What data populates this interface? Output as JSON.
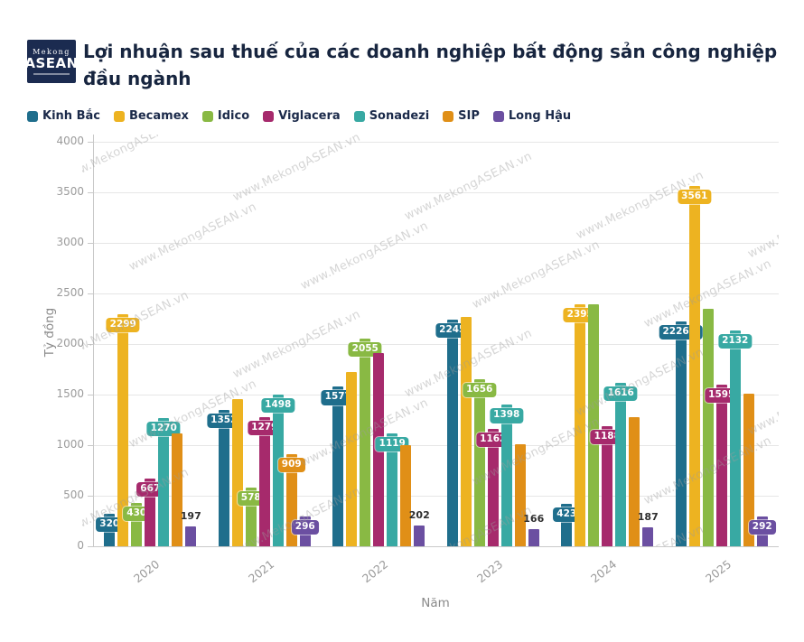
{
  "header": {
    "logo_line1": "Mekong",
    "logo_line2": "ASEAN"
  },
  "watermark": {
    "text": "www.MekongASEAN.vn"
  },
  "chart_data": {
    "type": "bar",
    "title": "Lợi nhuận sau thuế của các doanh nghiệp bất động sản công nghiệp đầu ngành",
    "xlabel": "Năm",
    "ylabel": "Tỷ đồng",
    "ylim": [
      0,
      4000
    ],
    "ytick_step": 500,
    "grid": true,
    "legend_position": "top",
    "categories": [
      "2020",
      "2021",
      "2022",
      "2023",
      "2024",
      "2025"
    ],
    "series": [
      {
        "name": "Kinh Bắc",
        "color": "#1f6e8c",
        "values": [
          320,
          1352,
          1577,
          2245,
          423,
          2226.8
        ],
        "labels": [
          "320",
          "1352",
          "1577",
          "2245",
          "423",
          "2226.8"
        ],
        "label_styles": [
          "badge",
          "badge",
          "badge",
          "badge",
          "badge",
          "badge"
        ]
      },
      {
        "name": "Becamex",
        "color": "#edb321",
        "values": [
          2299,
          1455,
          1720,
          2270,
          2395,
          3561
        ],
        "labels": [
          "2299",
          null,
          null,
          null,
          "2395",
          "3561"
        ],
        "label_styles": [
          "badge",
          null,
          null,
          null,
          "badge",
          "badge"
        ]
      },
      {
        "name": "Idico",
        "color": "#89b944",
        "values": [
          430,
          578,
          2055,
          1656,
          2390,
          2350
        ],
        "labels": [
          "430",
          "578",
          "2055",
          "1656",
          null,
          null
        ],
        "label_styles": [
          "badge",
          "badge",
          "badge",
          "badge",
          null,
          null
        ]
      },
      {
        "name": "Viglacera",
        "color": "#a62a6c",
        "values": [
          667,
          1279,
          1910,
          1162,
          1188,
          1595
        ],
        "labels": [
          "667",
          "1279",
          null,
          "1162",
          "1188",
          "1595"
        ],
        "label_styles": [
          "badge",
          "badge",
          null,
          "badge",
          "badge",
          "badge"
        ]
      },
      {
        "name": "Sonadezi",
        "color": "#38a9a3",
        "values": [
          1270,
          1498,
          1119,
          1398,
          1616,
          2132
        ],
        "labels": [
          "1270",
          "1498",
          "1119",
          "1398",
          "1616",
          "2132"
        ],
        "label_styles": [
          "badge",
          "badge",
          "badge",
          "badge",
          "badge",
          "badge"
        ]
      },
      {
        "name": "SIP",
        "color": "#e08f17",
        "values": [
          1120,
          909,
          1000,
          1010,
          1280,
          1510
        ],
        "labels": [
          null,
          "909",
          null,
          null,
          null,
          null
        ],
        "label_styles": [
          null,
          "badge",
          null,
          null,
          null,
          null
        ]
      },
      {
        "name": "Long Hậu",
        "color": "#6b4fa1",
        "values": [
          197,
          296,
          202,
          166,
          187,
          292
        ],
        "labels": [
          "197",
          "296",
          "202",
          "166",
          "187",
          "292"
        ],
        "label_styles": [
          "plain",
          "badge",
          "plain",
          "plain",
          "plain",
          "badge"
        ]
      }
    ]
  }
}
